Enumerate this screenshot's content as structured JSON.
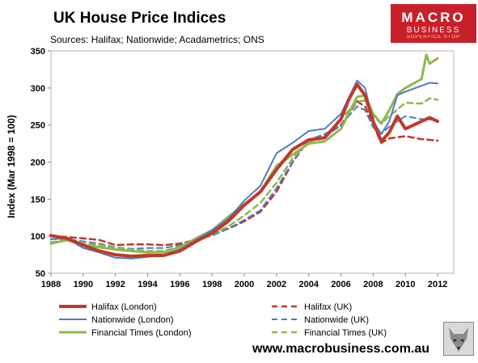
{
  "chart_data": {
    "type": "line",
    "title": "UK House Price Indices",
    "subtitle": "Sources: Halifax; Nationwide; Acadametrics; ONS",
    "ylabel": "Index (Mar 1998  = 100)",
    "xlabel": "",
    "xlim": [
      1988,
      2013
    ],
    "ylim": [
      50,
      350
    ],
    "x_ticks": [
      1988,
      1990,
      1992,
      1994,
      1996,
      1998,
      2000,
      2002,
      2004,
      2006,
      2008,
      2010,
      2012
    ],
    "y_ticks": [
      50,
      100,
      150,
      200,
      250,
      300,
      350
    ],
    "grid": false,
    "legend_position": "bottom",
    "series": [
      {
        "name": "Halifax (London)",
        "color": "#c0392b",
        "style": "solid",
        "width": 4,
        "points": [
          [
            1988,
            101
          ],
          [
            1989,
            97
          ],
          [
            1990,
            88
          ],
          [
            1991,
            80
          ],
          [
            1992,
            75
          ],
          [
            1993,
            73
          ],
          [
            1994,
            74
          ],
          [
            1995,
            74
          ],
          [
            1996,
            80
          ],
          [
            1997,
            93
          ],
          [
            1998,
            104
          ],
          [
            1999,
            120
          ],
          [
            2000,
            142
          ],
          [
            2001,
            160
          ],
          [
            2002,
            190
          ],
          [
            2003,
            217
          ],
          [
            2004,
            230
          ],
          [
            2005,
            233
          ],
          [
            2006,
            258
          ],
          [
            2006.5,
            285
          ],
          [
            2007,
            305
          ],
          [
            2007.5,
            290
          ],
          [
            2008,
            255
          ],
          [
            2008.5,
            228
          ],
          [
            2009,
            240
          ],
          [
            2009.5,
            262
          ],
          [
            2010,
            245
          ],
          [
            2011,
            255
          ],
          [
            2011.5,
            260
          ],
          [
            2012,
            255
          ]
        ]
      },
      {
        "name": "Halifax (UK)",
        "color": "#c0392b",
        "style": "dashed",
        "width": 2.5,
        "points": [
          [
            1988,
            100
          ],
          [
            1989,
            99
          ],
          [
            1990,
            97
          ],
          [
            1991,
            95
          ],
          [
            1992,
            88
          ],
          [
            1993,
            89
          ],
          [
            1994,
            89
          ],
          [
            1995,
            88
          ],
          [
            1996,
            90
          ],
          [
            1997,
            95
          ],
          [
            1998,
            102
          ],
          [
            1999,
            110
          ],
          [
            2000,
            120
          ],
          [
            2001,
            133
          ],
          [
            2002,
            160
          ],
          [
            2003,
            200
          ],
          [
            2004,
            230
          ],
          [
            2005,
            235
          ],
          [
            2006,
            250
          ],
          [
            2007,
            282
          ],
          [
            2007.5,
            275
          ],
          [
            2008,
            250
          ],
          [
            2008.5,
            226
          ],
          [
            2009,
            232
          ],
          [
            2010,
            235
          ],
          [
            2011,
            231
          ],
          [
            2012,
            229
          ]
        ]
      },
      {
        "name": "Nationwide (London)",
        "color": "#4a7dc3",
        "style": "solid",
        "width": 2,
        "points": [
          [
            1988,
            96
          ],
          [
            1989,
            97
          ],
          [
            1990,
            84
          ],
          [
            1991,
            78
          ],
          [
            1992,
            71
          ],
          [
            1993,
            70
          ],
          [
            1994,
            72
          ],
          [
            1995,
            75
          ],
          [
            1996,
            82
          ],
          [
            1997,
            95
          ],
          [
            1998,
            108
          ],
          [
            1999,
            123
          ],
          [
            2000,
            148
          ],
          [
            2001,
            168
          ],
          [
            2002,
            212
          ],
          [
            2003,
            226
          ],
          [
            2004,
            242
          ],
          [
            2005,
            245
          ],
          [
            2006,
            265
          ],
          [
            2007,
            310
          ],
          [
            2007.5,
            300
          ],
          [
            2008,
            255
          ],
          [
            2008.5,
            238
          ],
          [
            2009,
            255
          ],
          [
            2009.5,
            290
          ],
          [
            2010,
            295
          ],
          [
            2011,
            303
          ],
          [
            2011.5,
            307
          ],
          [
            2012,
            306
          ]
        ]
      },
      {
        "name": "Nationwide (UK)",
        "color": "#4a7dc3",
        "style": "dashed",
        "width": 2,
        "points": [
          [
            1988,
            96
          ],
          [
            1989,
            96
          ],
          [
            1990,
            93
          ],
          [
            1991,
            90
          ],
          [
            1992,
            85
          ],
          [
            1993,
            83
          ],
          [
            1994,
            84
          ],
          [
            1995,
            84
          ],
          [
            1996,
            88
          ],
          [
            1997,
            95
          ],
          [
            1998,
            101
          ],
          [
            1999,
            110
          ],
          [
            2000,
            122
          ],
          [
            2001,
            135
          ],
          [
            2002,
            165
          ],
          [
            2003,
            200
          ],
          [
            2004,
            230
          ],
          [
            2005,
            238
          ],
          [
            2006,
            250
          ],
          [
            2007,
            275
          ],
          [
            2007.5,
            270
          ],
          [
            2008,
            247
          ],
          [
            2008.5,
            238
          ],
          [
            2009,
            248
          ],
          [
            2010,
            262
          ],
          [
            2011,
            258
          ],
          [
            2012,
            257
          ]
        ]
      },
      {
        "name": "Financial Times (London)",
        "color": "#8db84e",
        "style": "solid",
        "width": 3,
        "points": [
          [
            1988,
            90
          ],
          [
            1989,
            95
          ],
          [
            1990,
            88
          ],
          [
            1991,
            85
          ],
          [
            1992,
            82
          ],
          [
            1993,
            80
          ],
          [
            1994,
            78
          ],
          [
            1995,
            78
          ],
          [
            1996,
            85
          ],
          [
            1997,
            97
          ],
          [
            1998,
            108
          ],
          [
            1999,
            126
          ],
          [
            2000,
            143
          ],
          [
            2001,
            160
          ],
          [
            2002,
            195
          ],
          [
            2003,
            210
          ],
          [
            2004,
            225
          ],
          [
            2005,
            228
          ],
          [
            2006,
            245
          ],
          [
            2007,
            288
          ],
          [
            2007.5,
            290
          ],
          [
            2008,
            265
          ],
          [
            2008.5,
            252
          ],
          [
            2009,
            270
          ],
          [
            2009.5,
            292
          ],
          [
            2010,
            300
          ],
          [
            2011,
            312
          ],
          [
            2011.3,
            345
          ],
          [
            2011.5,
            333
          ],
          [
            2012,
            340
          ]
        ]
      },
      {
        "name": "Financial Times (UK)",
        "color": "#8db84e",
        "style": "dashed",
        "width": 2.5,
        "points": [
          [
            1988,
            92
          ],
          [
            1989,
            94
          ],
          [
            1990,
            90
          ],
          [
            1991,
            88
          ],
          [
            1992,
            84
          ],
          [
            1993,
            82
          ],
          [
            1994,
            80
          ],
          [
            1995,
            80
          ],
          [
            1996,
            86
          ],
          [
            1997,
            95
          ],
          [
            1998,
            103
          ],
          [
            1999,
            113
          ],
          [
            2000,
            128
          ],
          [
            2001,
            145
          ],
          [
            2002,
            172
          ],
          [
            2003,
            205
          ],
          [
            2004,
            228
          ],
          [
            2005,
            232
          ],
          [
            2006,
            258
          ],
          [
            2007,
            282
          ],
          [
            2007.5,
            283
          ],
          [
            2008,
            262
          ],
          [
            2008.5,
            252
          ],
          [
            2009,
            262
          ],
          [
            2010,
            280
          ],
          [
            2011,
            279
          ],
          [
            2011.5,
            286
          ],
          [
            2012,
            284
          ]
        ]
      }
    ]
  },
  "logo": {
    "line1": "MACRO",
    "line2": "BUSINESS",
    "line3": "SUPERFICE STOP"
  },
  "website": "www.macrobusiness.com.au"
}
